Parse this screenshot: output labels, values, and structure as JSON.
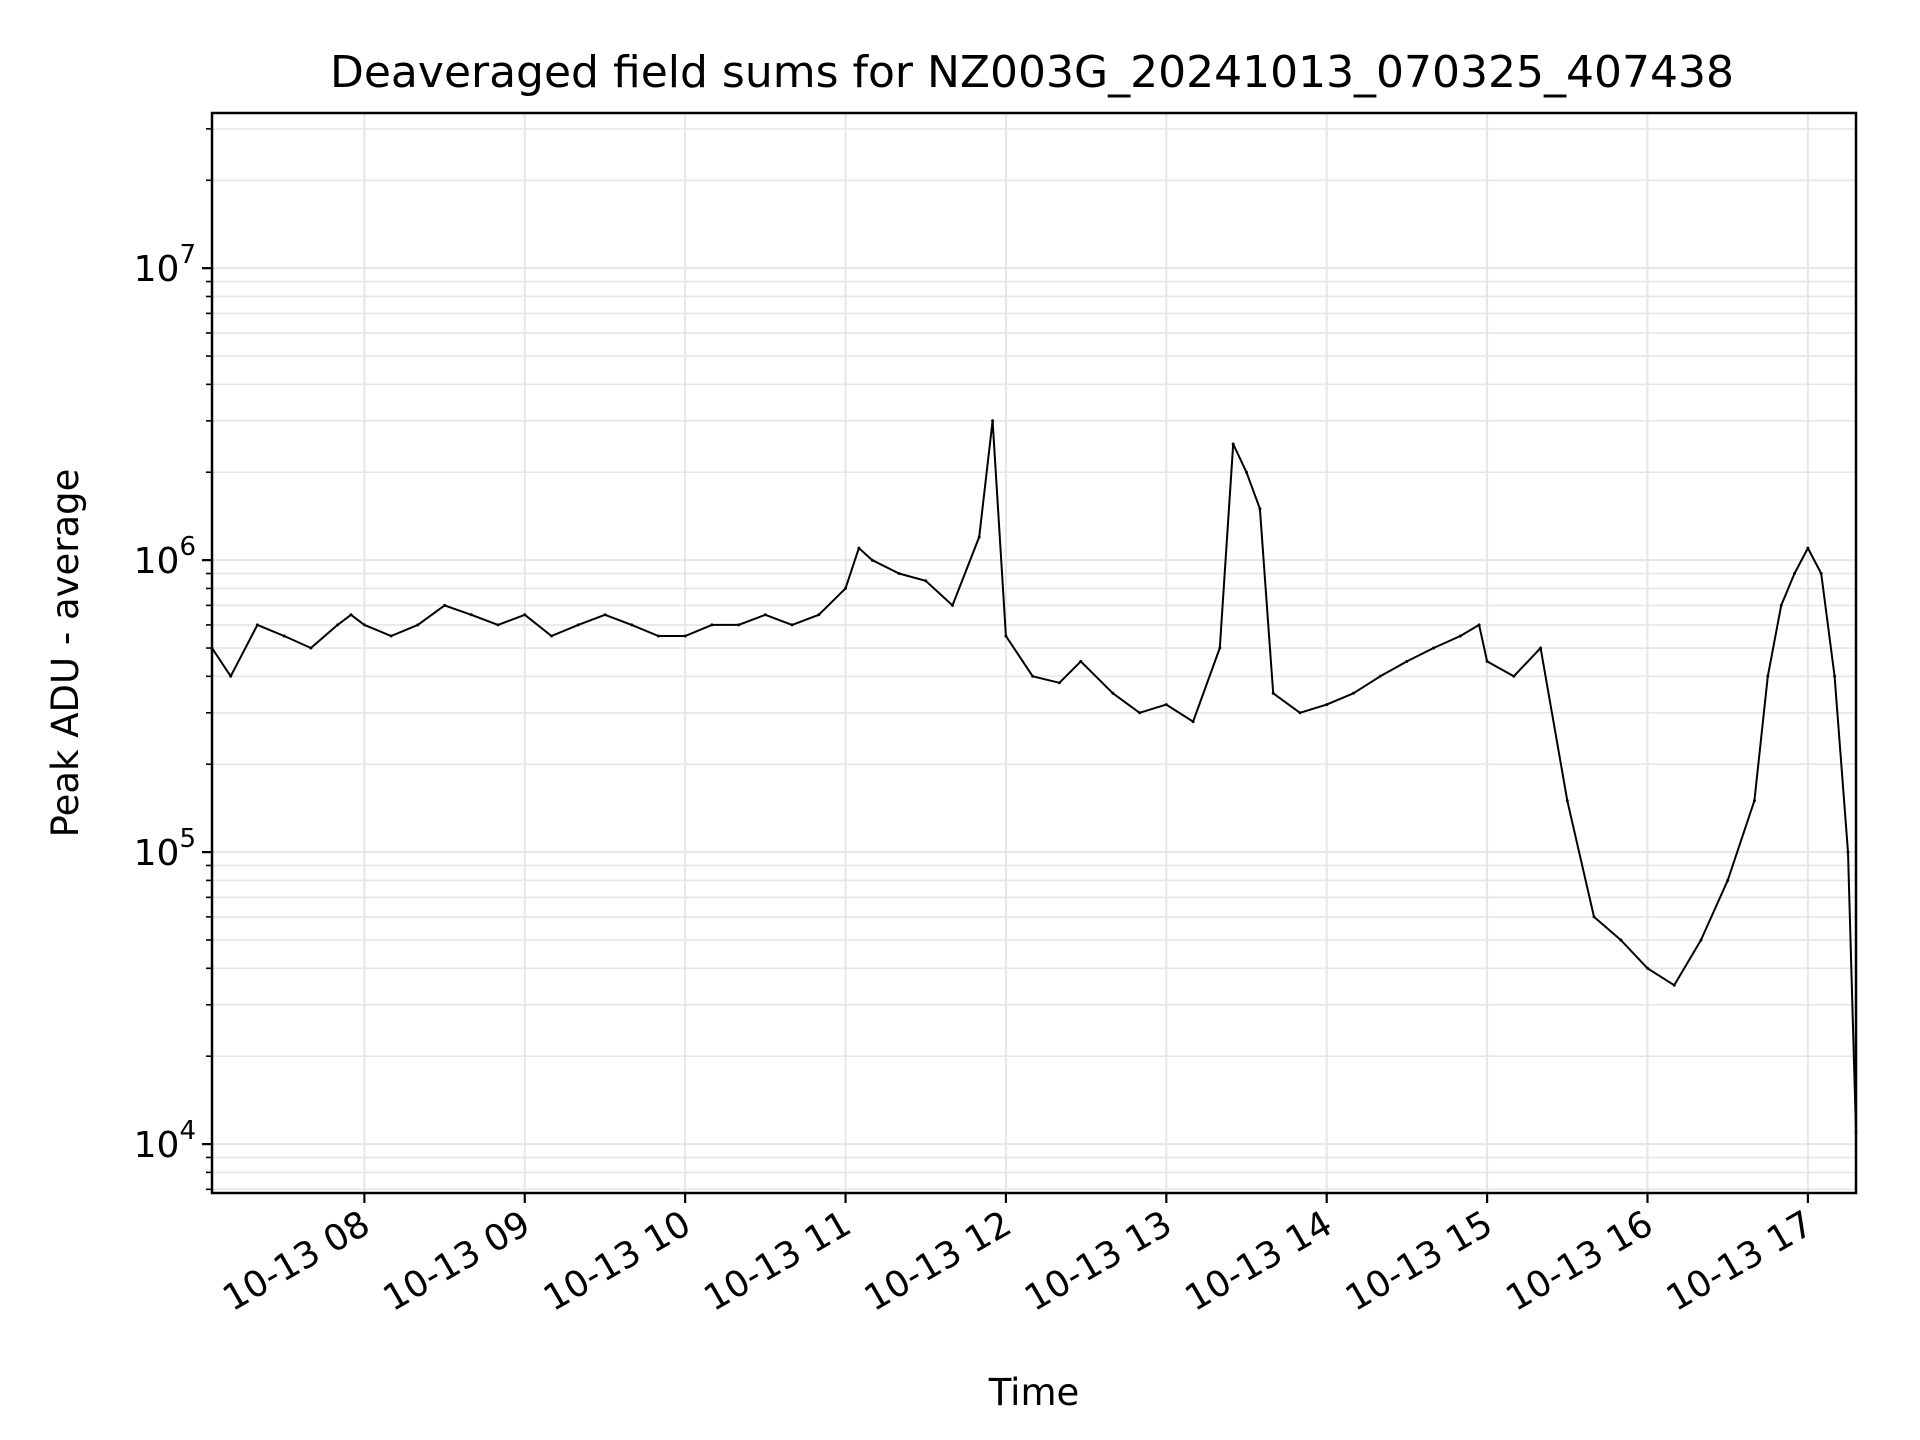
{
  "chart_data": {
    "type": "line",
    "title": "Deaveraged field sums for NZ003G_20241013_070325_407438",
    "xlabel": "Time",
    "ylabel": "Peak ADU - average",
    "y_scale": "log",
    "ylim": [
      6800,
      34000000
    ],
    "xlim": [
      "2024-10-13 07:03",
      "2024-10-13 17:18"
    ],
    "x_ticks": [
      {
        "value": "2024-10-13 08:00",
        "label": "10-13 08"
      },
      {
        "value": "2024-10-13 09:00",
        "label": "10-13 09"
      },
      {
        "value": "2024-10-13 10:00",
        "label": "10-13 10"
      },
      {
        "value": "2024-10-13 11:00",
        "label": "10-13 11"
      },
      {
        "value": "2024-10-13 12:00",
        "label": "10-13 12"
      },
      {
        "value": "2024-10-13 13:00",
        "label": "10-13 13"
      },
      {
        "value": "2024-10-13 14:00",
        "label": "10-13 14"
      },
      {
        "value": "2024-10-13 15:00",
        "label": "10-13 15"
      },
      {
        "value": "2024-10-13 16:00",
        "label": "10-13 16"
      },
      {
        "value": "2024-10-13 17:00",
        "label": "10-13 17"
      }
    ],
    "y_ticks": [
      {
        "value": 10000,
        "base": "10",
        "exp": "4"
      },
      {
        "value": 100000,
        "base": "10",
        "exp": "5"
      },
      {
        "value": 1000000,
        "base": "10",
        "exp": "6"
      },
      {
        "value": 10000000,
        "base": "10",
        "exp": "7"
      }
    ],
    "grid": true,
    "line_color": "#000000",
    "grid_color": "#e6e6e6",
    "series": [
      {
        "x": [
          "2024-10-13 07:03",
          "2024-10-13 07:10",
          "2024-10-13 07:20",
          "2024-10-13 07:30",
          "2024-10-13 07:40",
          "2024-10-13 07:50",
          "2024-10-13 07:55",
          "2024-10-13 08:00",
          "2024-10-13 08:10",
          "2024-10-13 08:20",
          "2024-10-13 08:30",
          "2024-10-13 08:40",
          "2024-10-13 08:50",
          "2024-10-13 09:00",
          "2024-10-13 09:10",
          "2024-10-13 09:20",
          "2024-10-13 09:30",
          "2024-10-13 09:40",
          "2024-10-13 09:50",
          "2024-10-13 10:00",
          "2024-10-13 10:10",
          "2024-10-13 10:20",
          "2024-10-13 10:30",
          "2024-10-13 10:40",
          "2024-10-13 10:50",
          "2024-10-13 11:00",
          "2024-10-13 11:05",
          "2024-10-13 11:10",
          "2024-10-13 11:20",
          "2024-10-13 11:30",
          "2024-10-13 11:40",
          "2024-10-13 11:50",
          "2024-10-13 11:55",
          "2024-10-13 12:00",
          "2024-10-13 12:10",
          "2024-10-13 12:20",
          "2024-10-13 12:28",
          "2024-10-13 12:40",
          "2024-10-13 12:50",
          "2024-10-13 13:00",
          "2024-10-13 13:10",
          "2024-10-13 13:20",
          "2024-10-13 13:25",
          "2024-10-13 13:30",
          "2024-10-13 13:35",
          "2024-10-13 13:40",
          "2024-10-13 13:50",
          "2024-10-13 14:00",
          "2024-10-13 14:10",
          "2024-10-13 14:20",
          "2024-10-13 14:30",
          "2024-10-13 14:40",
          "2024-10-13 14:50",
          "2024-10-13 14:57",
          "2024-10-13 15:00",
          "2024-10-13 15:10",
          "2024-10-13 15:20",
          "2024-10-13 15:30",
          "2024-10-13 15:40",
          "2024-10-13 15:50",
          "2024-10-13 16:00",
          "2024-10-13 16:10",
          "2024-10-13 16:20",
          "2024-10-13 16:30",
          "2024-10-13 16:40",
          "2024-10-13 16:45",
          "2024-10-13 16:50",
          "2024-10-13 16:55",
          "2024-10-13 17:00",
          "2024-10-13 17:05",
          "2024-10-13 17:10",
          "2024-10-13 17:15",
          "2024-10-13 17:18"
        ],
        "y": [
          500000,
          400000,
          600000,
          550000,
          500000,
          600000,
          650000,
          600000,
          550000,
          600000,
          700000,
          650000,
          600000,
          650000,
          550000,
          600000,
          650000,
          600000,
          550000,
          550000,
          600000,
          600000,
          650000,
          600000,
          650000,
          800000,
          1100000,
          1000000,
          900000,
          850000,
          700000,
          1200000,
          3000000,
          550000,
          400000,
          380000,
          450000,
          350000,
          300000,
          320000,
          280000,
          500000,
          2500000,
          2000000,
          1500000,
          350000,
          300000,
          320000,
          350000,
          400000,
          450000,
          500000,
          550000,
          600000,
          450000,
          400000,
          500000,
          150000,
          60000,
          50000,
          40000,
          35000,
          50000,
          80000,
          150000,
          400000,
          700000,
          900000,
          1100000,
          900000,
          400000,
          100000,
          11000
        ]
      }
    ]
  }
}
